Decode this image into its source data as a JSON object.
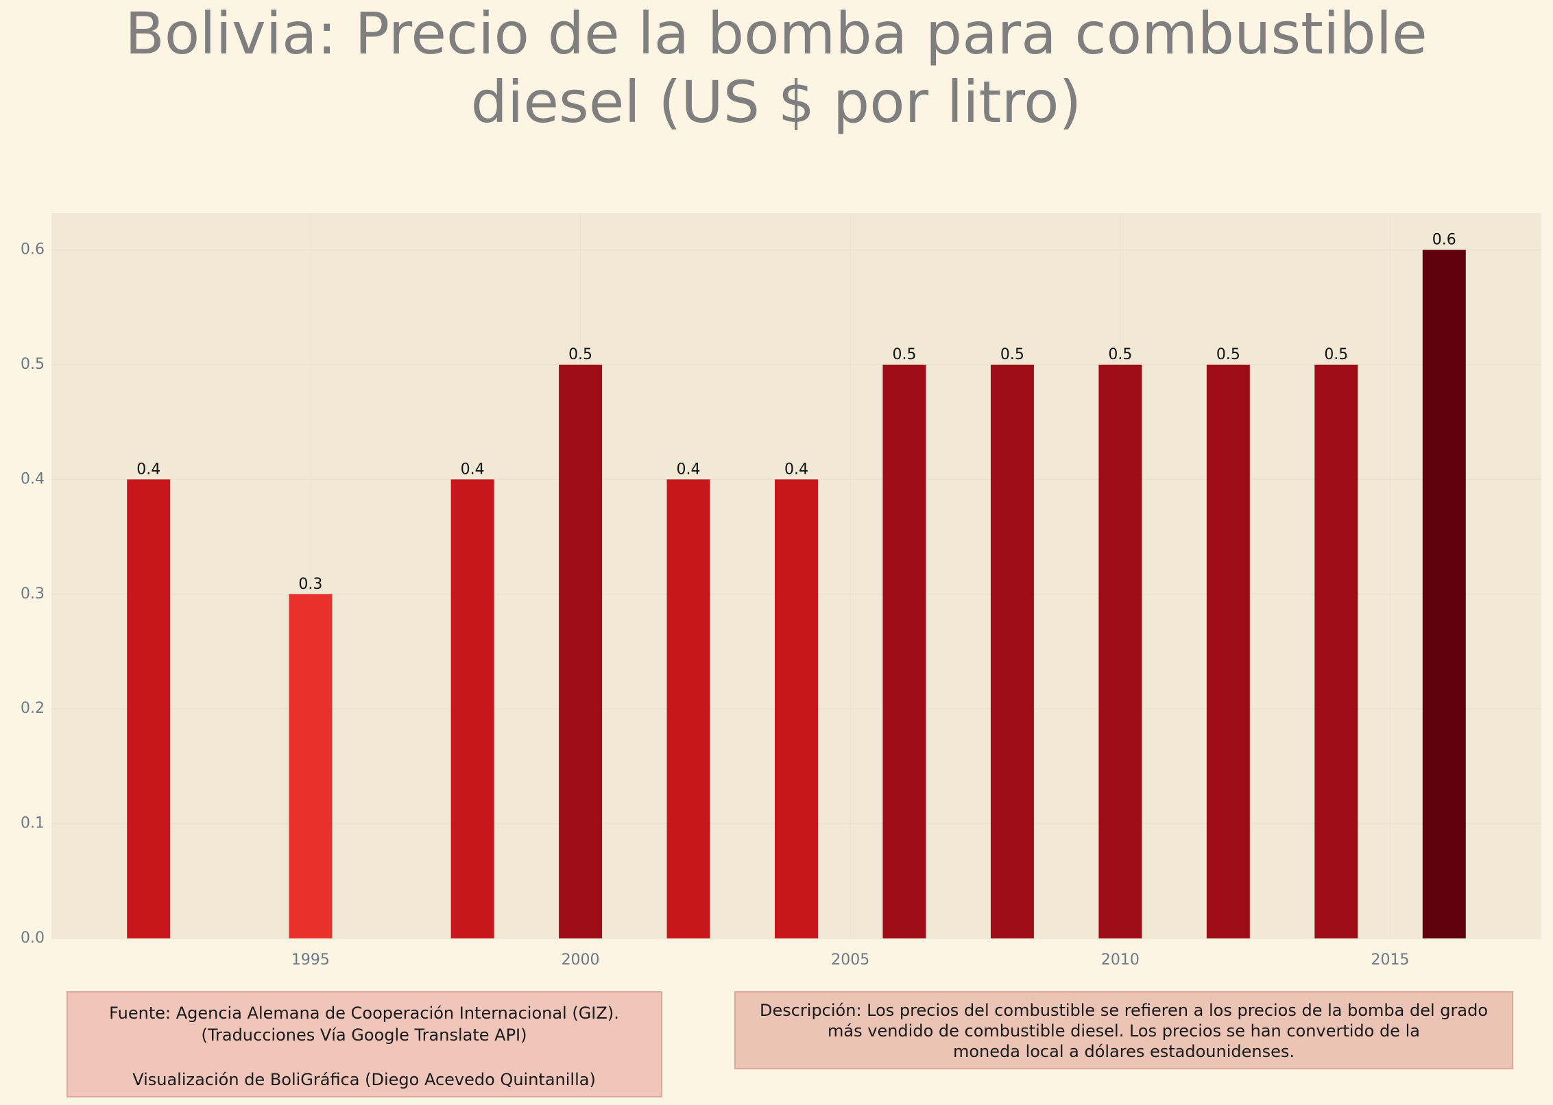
{
  "chart_data": {
    "type": "bar",
    "title": [
      "Bolivia:  Precio de la bomba para combustible",
      "diesel (US $ por litro)"
    ],
    "x": [
      1992,
      1995,
      1998,
      2000,
      2002,
      2004,
      2006,
      2008,
      2010,
      2012,
      2014,
      2016
    ],
    "values": [
      0.4,
      0.3,
      0.4,
      0.5,
      0.4,
      0.4,
      0.5,
      0.5,
      0.5,
      0.5,
      0.5,
      0.6
    ],
    "colors": [
      "#c6171d",
      "#e8312a",
      "#c6171d",
      "#9e0c15",
      "#c6171d",
      "#c6171d",
      "#9e0c15",
      "#9e0c15",
      "#9e0c15",
      "#9e0c15",
      "#9e0c15",
      "#5f000c"
    ],
    "xlim": [
      1990.2,
      2017.8
    ],
    "xticks": [
      1995,
      2000,
      2005,
      2010,
      2015
    ],
    "ylim": [
      0,
      0.632
    ],
    "yticks": [
      {
        "value": 0,
        "label": "0.0"
      },
      0.1,
      0.2,
      0.3,
      0.4,
      0.5,
      0.6
    ],
    "grid": true,
    "source_note": [
      "Fuente: Agencia Alemana de Cooperación Internacional (GIZ).",
      "(Traducciones Vía Google Translate API)",
      "Visualización de BoliGráfica (Diego Acevedo Quintanilla)"
    ],
    "description_note": [
      "Descripción: Los precios del combustible se refieren a los precios de la bomba del grado",
      "más vendido de combustible diesel. Los precios se han convertido de la",
      "moneda local a dólares estadounidenses."
    ]
  }
}
